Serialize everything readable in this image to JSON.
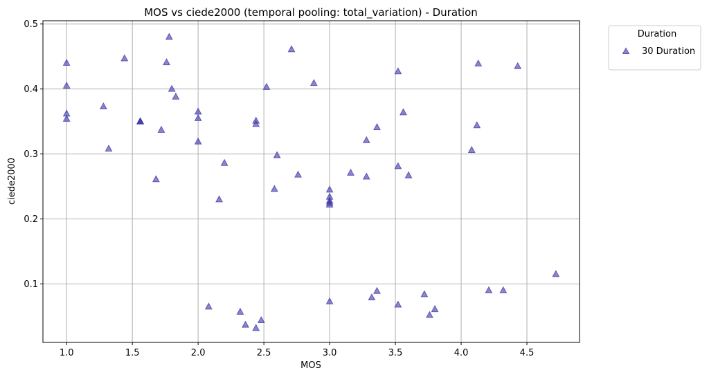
{
  "chart_data": {
    "type": "scatter",
    "title": "MOS vs ciede2000 (temporal pooling: total_variation) - Duration",
    "xlabel": "MOS",
    "ylabel": "ciede2000",
    "xlim": [
      0.82,
      4.9
    ],
    "ylim": [
      0.01,
      0.505
    ],
    "xticks": [
      1.0,
      1.5,
      2.0,
      2.5,
      3.0,
      3.5,
      4.0,
      4.5
    ],
    "yticks": [
      0.1,
      0.2,
      0.3,
      0.4,
      0.5
    ],
    "xtick_labels": [
      "1.0",
      "1.5",
      "2.0",
      "2.5",
      "3.0",
      "3.5",
      "4.0",
      "4.5"
    ],
    "ytick_labels": [
      "0.1",
      "0.2",
      "0.3",
      "0.4",
      "0.5"
    ],
    "grid": true,
    "legend": {
      "title": "Duration",
      "placement": "outside-upper-right"
    },
    "series": [
      {
        "name": "30 Duration",
        "marker": "triangle-up",
        "color": "#3b35a6",
        "points": [
          {
            "x": 1.0,
            "y": 0.44
          },
          {
            "x": 1.0,
            "y": 0.405
          },
          {
            "x": 1.0,
            "y": 0.362
          },
          {
            "x": 1.0,
            "y": 0.354
          },
          {
            "x": 1.28,
            "y": 0.373
          },
          {
            "x": 1.32,
            "y": 0.308
          },
          {
            "x": 1.44,
            "y": 0.447
          },
          {
            "x": 1.56,
            "y": 0.35
          },
          {
            "x": 1.56,
            "y": 0.35
          },
          {
            "x": 1.56,
            "y": 0.35
          },
          {
            "x": 1.68,
            "y": 0.261
          },
          {
            "x": 1.72,
            "y": 0.337
          },
          {
            "x": 1.76,
            "y": 0.441
          },
          {
            "x": 1.78,
            "y": 0.48
          },
          {
            "x": 1.8,
            "y": 0.4
          },
          {
            "x": 1.83,
            "y": 0.388
          },
          {
            "x": 2.0,
            "y": 0.365
          },
          {
            "x": 2.0,
            "y": 0.355
          },
          {
            "x": 2.0,
            "y": 0.319
          },
          {
            "x": 2.08,
            "y": 0.065
          },
          {
            "x": 2.16,
            "y": 0.23
          },
          {
            "x": 2.2,
            "y": 0.286
          },
          {
            "x": 2.32,
            "y": 0.057
          },
          {
            "x": 2.36,
            "y": 0.037
          },
          {
            "x": 2.44,
            "y": 0.351
          },
          {
            "x": 2.44,
            "y": 0.346
          },
          {
            "x": 2.44,
            "y": 0.032
          },
          {
            "x": 2.48,
            "y": 0.044
          },
          {
            "x": 2.52,
            "y": 0.403
          },
          {
            "x": 2.58,
            "y": 0.246
          },
          {
            "x": 2.6,
            "y": 0.298
          },
          {
            "x": 2.71,
            "y": 0.461
          },
          {
            "x": 2.76,
            "y": 0.268
          },
          {
            "x": 2.88,
            "y": 0.409
          },
          {
            "x": 3.0,
            "y": 0.245
          },
          {
            "x": 3.0,
            "y": 0.234
          },
          {
            "x": 3.0,
            "y": 0.228
          },
          {
            "x": 3.0,
            "y": 0.225
          },
          {
            "x": 3.0,
            "y": 0.222
          },
          {
            "x": 3.0,
            "y": 0.073
          },
          {
            "x": 3.16,
            "y": 0.271
          },
          {
            "x": 3.28,
            "y": 0.321
          },
          {
            "x": 3.28,
            "y": 0.265
          },
          {
            "x": 3.32,
            "y": 0.079
          },
          {
            "x": 3.36,
            "y": 0.341
          },
          {
            "x": 3.36,
            "y": 0.089
          },
          {
            "x": 3.52,
            "y": 0.427
          },
          {
            "x": 3.52,
            "y": 0.281
          },
          {
            "x": 3.52,
            "y": 0.068
          },
          {
            "x": 3.56,
            "y": 0.364
          },
          {
            "x": 3.6,
            "y": 0.267
          },
          {
            "x": 3.72,
            "y": 0.084
          },
          {
            "x": 3.76,
            "y": 0.052
          },
          {
            "x": 3.8,
            "y": 0.061
          },
          {
            "x": 4.08,
            "y": 0.306
          },
          {
            "x": 4.12,
            "y": 0.344
          },
          {
            "x": 4.13,
            "y": 0.439
          },
          {
            "x": 4.21,
            "y": 0.09
          },
          {
            "x": 4.32,
            "y": 0.09
          },
          {
            "x": 4.43,
            "y": 0.435
          },
          {
            "x": 4.72,
            "y": 0.115
          }
        ]
      }
    ]
  }
}
